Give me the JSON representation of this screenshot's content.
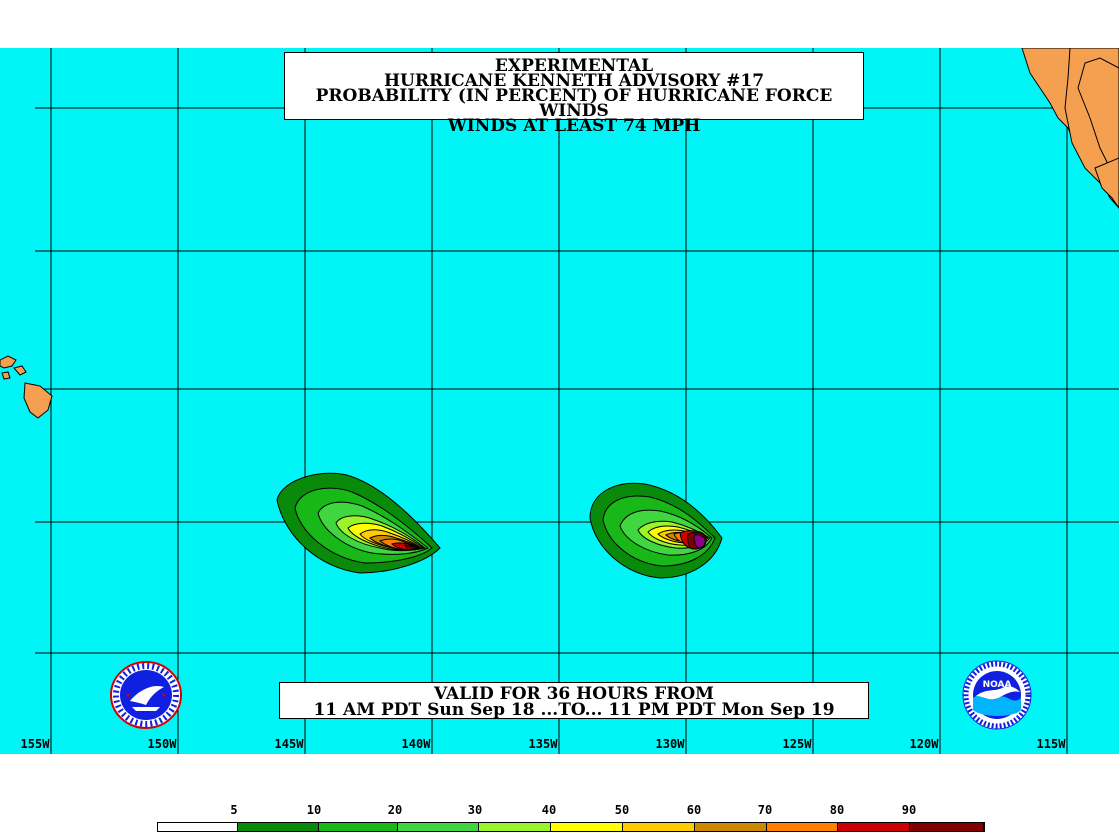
{
  "title": {
    "line1": "EXPERIMENTAL",
    "line2": "HURRICANE KENNETH ADVISORY #17",
    "line3": "PROBABILITY (IN PERCENT) OF HURRICANE FORCE WINDS",
    "line4": "WINDS AT LEAST 74 MPH"
  },
  "valid": {
    "line1": "VALID FOR 36 HOURS FROM",
    "line2": "11 AM PDT Sun Sep 18 ...TO... 11 PM PDT Mon Sep 19"
  },
  "longitude_labels": [
    "155W",
    "150W",
    "145W",
    "140W",
    "135W",
    "130W",
    "125W",
    "120W",
    "115W"
  ],
  "legend": {
    "labels": [
      "5",
      "10",
      "20",
      "30",
      "40",
      "50",
      "60",
      "70",
      "80",
      "90"
    ],
    "colors": [
      "#ffffff",
      "#0a8a0a",
      "#18b818",
      "#3fd63f",
      "#9af52a",
      "#ffff00",
      "#ffcc00",
      "#cc8800",
      "#ff8000",
      "#cc0000",
      "#800000",
      "#8a008a"
    ]
  },
  "colors": {
    "ocean": "#00f6f6",
    "land": "#f5a050",
    "grid": "#000000"
  },
  "logos": {
    "left": "nws-logo",
    "right": "noaa-logo",
    "noaa_text": "NOAA"
  }
}
